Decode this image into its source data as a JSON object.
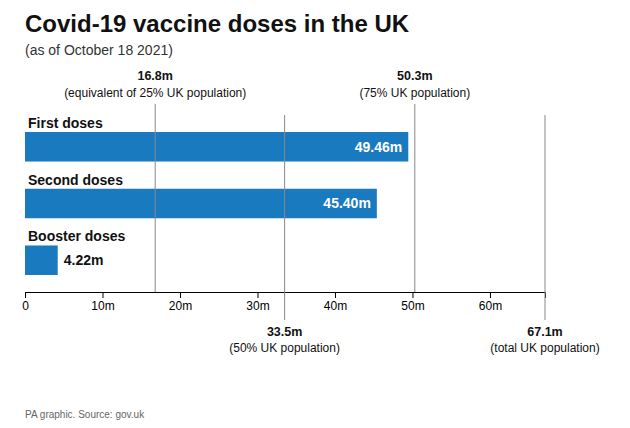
{
  "chart_data": {
    "type": "bar",
    "orientation": "horizontal",
    "title": "Covid-19 vaccine doses in the UK",
    "subtitle": "(as of October 18 2021)",
    "source": "PA graphic. Source: gov.uk",
    "categories": [
      "Booster doses",
      "Second doses",
      "First doses"
    ],
    "values": [
      4.22,
      45.4,
      49.46
    ],
    "value_labels": [
      "4.22m",
      "45.40m",
      "49.46m"
    ],
    "data_labels": true,
    "color": "#1a7abf",
    "xlim": [
      0,
      67.1
    ],
    "xticks": [
      0,
      {
        "value": 10,
        "label": "10m"
      },
      {
        "value": 20,
        "label": "20m"
      },
      {
        "value": 30,
        "label": "30m"
      },
      {
        "value": 40,
        "label": "40m"
      },
      {
        "value": 50,
        "label": "50m"
      },
      {
        "value": 60,
        "label": "60m"
      }
    ],
    "grid": false,
    "annotations": [
      {
        "x": 16.8,
        "label": "16.8m",
        "text": "(equivalent of 25% UK population)"
      },
      {
        "x": 50.3,
        "label": "50.3m",
        "text": "(75% UK population)"
      },
      {
        "x": 33.5,
        "label": "33.5m",
        "text": "(50% UK population)"
      },
      {
        "x": 67.1,
        "label": "67.1m",
        "text": "(total UK population)"
      }
    ]
  }
}
